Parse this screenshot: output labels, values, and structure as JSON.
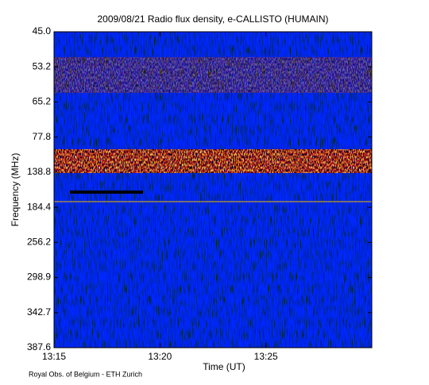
{
  "chart_data": {
    "type": "spectrogram",
    "title": "2009/08/21  Radio flux density, e-CALLISTO (HUMAIN)",
    "x_label": "Time (UT)",
    "y_label": "Frequency (MHz)",
    "footer": "Royal Obs. of Belgium - ETH Zurich",
    "xlim": [
      795,
      810
    ],
    "xticks": [
      {
        "value": 795,
        "label": "13:15"
      },
      {
        "value": 800,
        "label": "13:20"
      },
      {
        "value": 805,
        "label": "13:25"
      }
    ],
    "ylim": [
      45,
      387.6
    ],
    "yticks": [
      {
        "value": 45,
        "label": "45.0"
      },
      53.2,
      65.2,
      77.8,
      138.8,
      184.4,
      256.2,
      298.9,
      342.7,
      387.6
    ],
    "y_reversed": true,
    "grid": false
  }
}
